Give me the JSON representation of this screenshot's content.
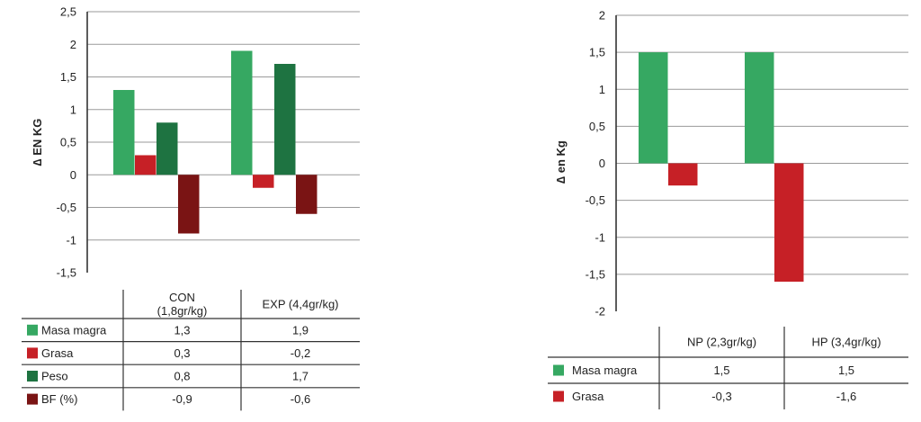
{
  "chart_data": [
    {
      "type": "bar",
      "ylabel": "∆ EN KG",
      "ylim": [
        -1.5,
        2.5
      ],
      "yticks": [
        "2,5",
        "2",
        "1,5",
        "1",
        "0,5",
        "0",
        "-0,5",
        "-1",
        "-1,5"
      ],
      "ytick_values": [
        2.5,
        2,
        1.5,
        1,
        0.5,
        0,
        -0.5,
        -1,
        -1.5
      ],
      "grid": true,
      "categories": [
        "CON\n(1,8gr/kg)",
        "EXP (4,4gr/kg)"
      ],
      "series": [
        {
          "name": "Masa magra",
          "color": "#36a862",
          "values": [
            1.3,
            1.9
          ],
          "labels": [
            "1,3",
            "1,9"
          ]
        },
        {
          "name": "Grasa",
          "color": "#c62026",
          "values": [
            0.3,
            -0.2
          ],
          "labels": [
            "0,3",
            "-0,2"
          ]
        },
        {
          "name": "Peso",
          "color": "#1e7341",
          "values": [
            0.8,
            1.7
          ],
          "labels": [
            "0,8",
            "1,7"
          ]
        },
        {
          "name": "BF (%)",
          "color": "#7a1414",
          "values": [
            -0.9,
            -0.6
          ],
          "labels": [
            "-0,9",
            "-0,6"
          ]
        }
      ]
    },
    {
      "type": "bar",
      "ylabel": "∆ en Kg",
      "ylim": [
        -2,
        2
      ],
      "yticks": [
        "2",
        "1,5",
        "1",
        "0,5",
        "0",
        "-0,5",
        "-1",
        "-1,5",
        "-2"
      ],
      "ytick_values": [
        2,
        1.5,
        1,
        0.5,
        0,
        -0.5,
        -1,
        -1.5,
        -2
      ],
      "grid": true,
      "categories": [
        "NP (2,3gr/kg)",
        "HP (3,4gr/kg)"
      ],
      "series": [
        {
          "name": "Masa magra",
          "color": "#36a862",
          "values": [
            1.5,
            1.5
          ],
          "labels": [
            "1,5",
            "1,5"
          ]
        },
        {
          "name": "Grasa",
          "color": "#c62026",
          "values": [
            -0.3,
            -1.6
          ],
          "labels": [
            "-0,3",
            "-1,6"
          ]
        }
      ]
    }
  ]
}
